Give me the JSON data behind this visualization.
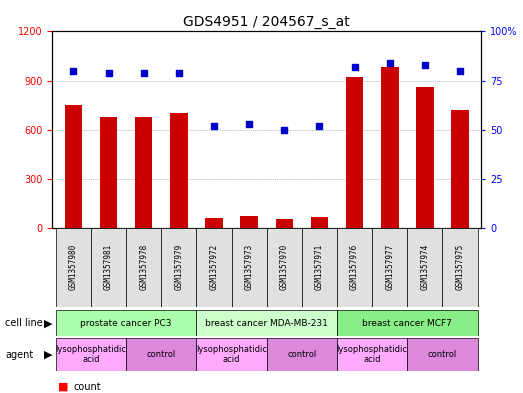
{
  "title": "GDS4951 / 204567_s_at",
  "samples": [
    "GSM1357980",
    "GSM1357981",
    "GSM1357978",
    "GSM1357979",
    "GSM1357972",
    "GSM1357973",
    "GSM1357970",
    "GSM1357971",
    "GSM1357976",
    "GSM1357977",
    "GSM1357974",
    "GSM1357975"
  ],
  "counts": [
    750,
    680,
    680,
    700,
    60,
    70,
    55,
    65,
    920,
    980,
    860,
    720
  ],
  "percentiles": [
    80,
    79,
    79,
    79,
    52,
    53,
    50,
    52,
    82,
    84,
    83,
    80
  ],
  "cell_lines": [
    {
      "label": "prostate cancer PC3",
      "start": 0,
      "end": 4,
      "color": "#aaffaa"
    },
    {
      "label": "breast cancer MDA-MB-231",
      "start": 4,
      "end": 8,
      "color": "#ccffcc"
    },
    {
      "label": "breast cancer MCF7",
      "start": 8,
      "end": 12,
      "color": "#88ee88"
    }
  ],
  "agents": [
    {
      "label": "lysophosphatidic\nacid",
      "start": 0,
      "end": 2,
      "color": "#ffaaff"
    },
    {
      "label": "control",
      "start": 2,
      "end": 4,
      "color": "#dd88dd"
    },
    {
      "label": "lysophosphatidic\nacid",
      "start": 4,
      "end": 6,
      "color": "#ffaaff"
    },
    {
      "label": "control",
      "start": 6,
      "end": 8,
      "color": "#dd88dd"
    },
    {
      "label": "lysophosphatidic\nacid",
      "start": 8,
      "end": 10,
      "color": "#ffaaff"
    },
    {
      "label": "control",
      "start": 10,
      "end": 12,
      "color": "#dd88dd"
    }
  ],
  "bar_color": "#cc0000",
  "dot_color": "#0000cc",
  "ylim_left": [
    0,
    1200
  ],
  "ylim_right": [
    0,
    100
  ],
  "yticks_left": [
    0,
    300,
    600,
    900,
    1200
  ],
  "yticks_right": [
    0,
    25,
    50,
    75,
    100
  ],
  "grid_color": "#888888"
}
